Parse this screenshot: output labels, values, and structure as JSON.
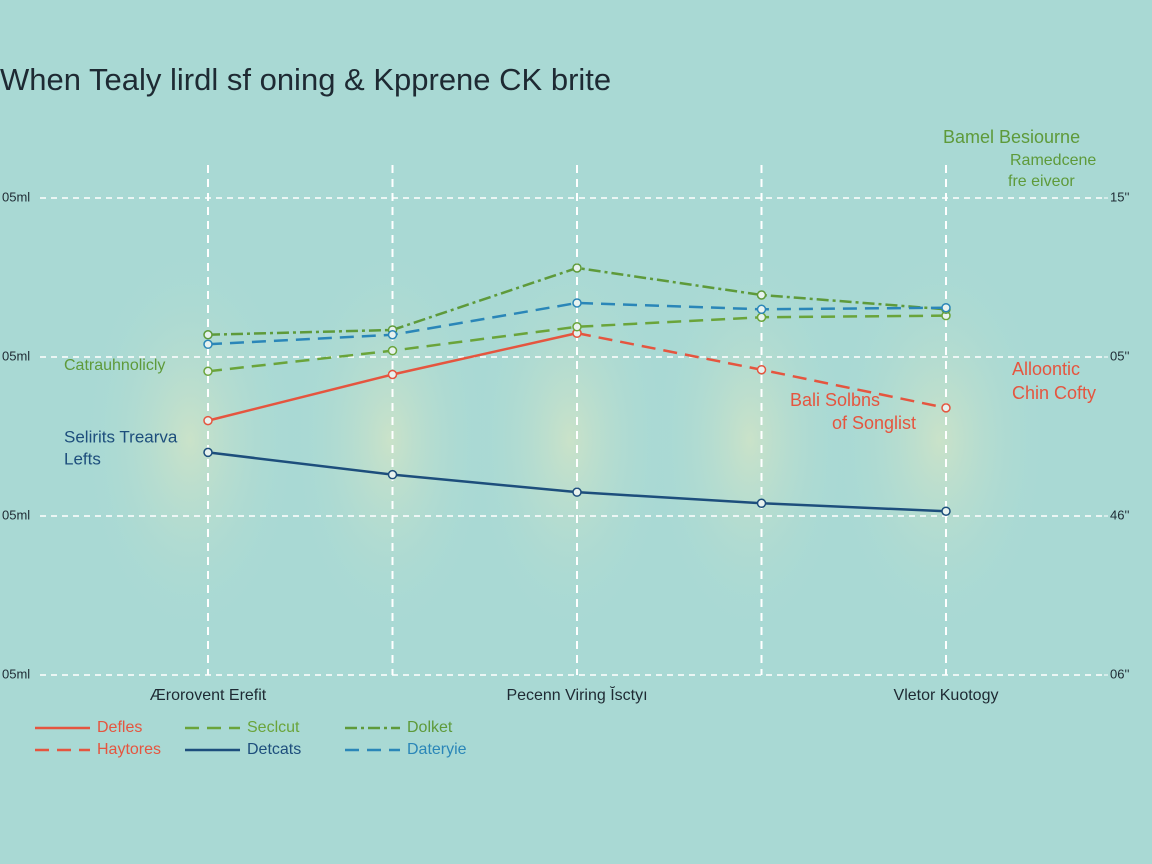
{
  "chart_data": {
    "type": "line",
    "title": "When Tealy lirdl sf oning & Kpprene CK brite",
    "categories": [
      "Ærorovent Erefit",
      null,
      "Pecenn Viring Ĭsctyı",
      null,
      "Vletor Kuotogy"
    ],
    "ylim": [
      0,
      3
    ],
    "yticks": [
      {
        "value": 0,
        "label": "05ml"
      },
      {
        "value": 1,
        "label": "05ml"
      },
      {
        "value": 2,
        "label": "05ml"
      },
      {
        "value": 3,
        "label": "05ml"
      }
    ],
    "y2lim": [
      0,
      3
    ],
    "y2ticks": [
      {
        "value": 0,
        "label": "06''"
      },
      {
        "value": 1,
        "label": "46''"
      },
      {
        "value": 2,
        "label": "05''"
      },
      {
        "value": 3,
        "label": "15''"
      }
    ],
    "grid": true,
    "series": [
      {
        "name": "Defles",
        "color": "#e5553f",
        "style": "solid",
        "values": [
          1.6,
          1.89,
          2.15,
          null,
          null
        ]
      },
      {
        "name": "Haytores",
        "color": "#e5553f",
        "style": "dashed",
        "values": [
          null,
          null,
          2.15,
          1.92,
          1.68
        ]
      },
      {
        "name": "Seclcut",
        "color": "#6aa43a",
        "style": "dashed",
        "values": [
          1.91,
          2.04,
          2.19,
          2.25,
          2.26
        ]
      },
      {
        "name": "Detcats",
        "color": "#1d4e7c",
        "style": "solid",
        "values": [
          1.4,
          1.26,
          1.15,
          1.08,
          1.03
        ]
      },
      {
        "name": "Dolket",
        "color": "#5e9a3a",
        "style": "dashdot",
        "values": [
          2.14,
          2.17,
          2.56,
          2.39,
          2.3
        ]
      },
      {
        "name": "Dateryie",
        "color": "#2a86b8",
        "style": "dashed",
        "values": [
          2.08,
          2.14,
          2.34,
          2.3,
          2.31
        ]
      }
    ],
    "annotations": [
      "Bamel Besiourne",
      "Ramedcene",
      "fre eiveor",
      "Catrauhnolicly",
      "Selirits Trearva",
      "Lefts",
      "Bali Solbns",
      "of Songlist",
      "Alloontic",
      "Chin Cofty"
    ]
  }
}
